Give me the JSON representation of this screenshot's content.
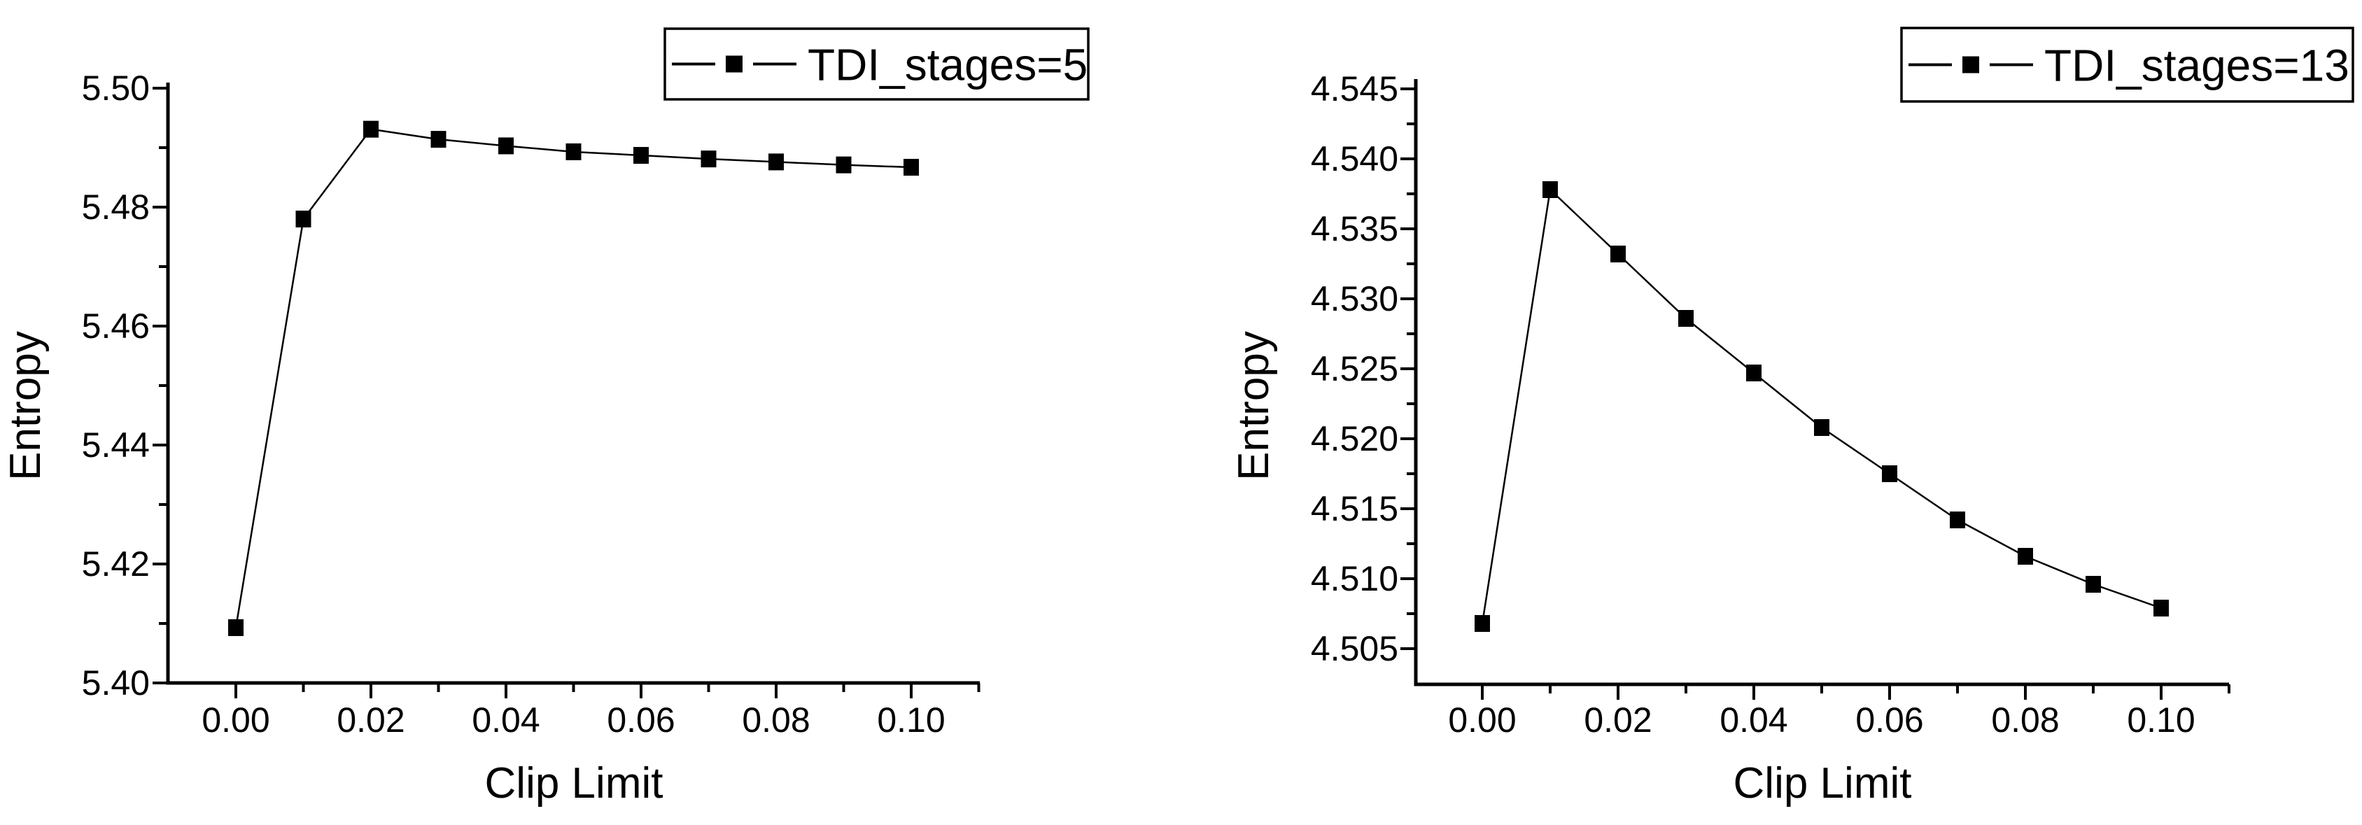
{
  "figure": {
    "background_color": "#ffffff",
    "foreground_color": "#000000",
    "description": "Two Origin-style line charts of Entropy vs Clip Limit"
  },
  "chart_data": [
    {
      "type": "line",
      "title": "",
      "xlabel": "Clip Limit",
      "ylabel": "Entropy",
      "legend_entries": [
        "TDI_stages=5"
      ],
      "legend_position": "top-right",
      "grid": false,
      "marker": "filled-square",
      "line_color": "#000000",
      "x": [
        0.0,
        0.01,
        0.02,
        0.03,
        0.04,
        0.05,
        0.06,
        0.07,
        0.08,
        0.09,
        0.1
      ],
      "series": [
        {
          "name": "TDI_stages=5",
          "values": [
            5.4093,
            5.478,
            5.4931,
            5.4914,
            5.4903,
            5.4893,
            5.4887,
            5.4881,
            5.4876,
            5.4871,
            5.4867
          ]
        }
      ],
      "xlim": [
        -0.01,
        0.11
      ],
      "ylim": [
        5.4,
        5.502
      ],
      "x_major_ticks": [
        0.0,
        0.02,
        0.04,
        0.06,
        0.08,
        0.1
      ],
      "x_tick_labels": [
        "0.00",
        "0.02",
        "0.04",
        "0.06",
        "0.08",
        "0.10"
      ],
      "x_minor_ticks": [
        0.01,
        0.03,
        0.05,
        0.07,
        0.09,
        0.11
      ],
      "y_major_ticks": [
        5.4,
        5.42,
        5.44,
        5.46,
        5.48,
        5.5
      ],
      "y_tick_labels": [
        "5.40",
        "5.42",
        "5.44",
        "5.46",
        "5.48",
        "5.50"
      ],
      "y_minor_ticks": [
        5.41,
        5.43,
        5.45,
        5.47,
        5.49
      ]
    },
    {
      "type": "line",
      "title": "",
      "xlabel": "Clip Limit",
      "ylabel": "Entropy",
      "legend_entries": [
        "TDI_stages=13"
      ],
      "legend_position": "top-right",
      "grid": false,
      "marker": "filled-square",
      "line_color": "#000000",
      "x": [
        0.0,
        0.01,
        0.02,
        0.03,
        0.04,
        0.05,
        0.06,
        0.07,
        0.08,
        0.09,
        0.1
      ],
      "series": [
        {
          "name": "TDI_stages=13",
          "values": [
            4.5068,
            4.5378,
            4.5332,
            4.5286,
            4.5247,
            4.5208,
            4.5175,
            4.5142,
            4.5116,
            4.5096,
            4.5079
          ]
        }
      ],
      "xlim": [
        -0.01,
        0.11
      ],
      "ylim": [
        4.5025,
        4.5455
      ],
      "x_major_ticks": [
        0.0,
        0.02,
        0.04,
        0.06,
        0.08,
        0.1
      ],
      "x_tick_labels": [
        "0.00",
        "0.02",
        "0.04",
        "0.06",
        "0.08",
        "0.10"
      ],
      "x_minor_ticks": [
        0.01,
        0.03,
        0.05,
        0.07,
        0.09,
        0.11
      ],
      "y_major_ticks": [
        4.505,
        4.51,
        4.515,
        4.52,
        4.525,
        4.53,
        4.535,
        4.54,
        4.545
      ],
      "y_tick_labels": [
        "4.505",
        "4.510",
        "4.515",
        "4.520",
        "4.525",
        "4.530",
        "4.535",
        "4.540",
        "4.545"
      ],
      "y_minor_ticks": [
        4.5075,
        4.5125,
        4.5175,
        4.5225,
        4.5275,
        4.5325,
        4.5375,
        4.5425
      ]
    }
  ]
}
